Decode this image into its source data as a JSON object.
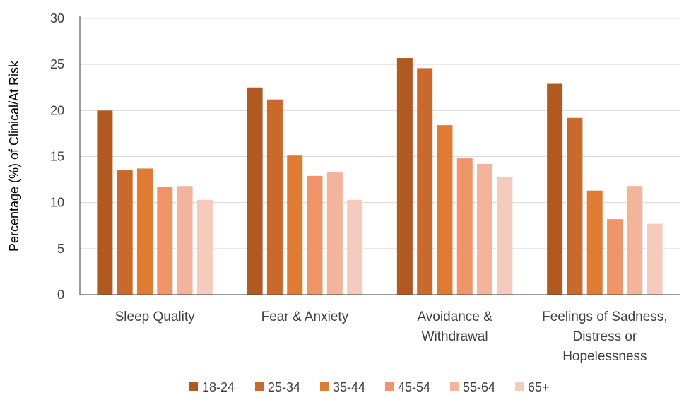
{
  "chart_data": {
    "type": "bar",
    "ylabel": "Percentage (%) of Clinical/At Risk",
    "ylim": [
      0,
      30
    ],
    "yticks": [
      0,
      5,
      10,
      15,
      20,
      25,
      30
    ],
    "grid": "horizontal",
    "legend_position": "bottom",
    "categories": [
      [
        "Sleep Quality"
      ],
      [
        "Fear & Anxiety"
      ],
      [
        "Avoidance &",
        "Withdrawal"
      ],
      [
        "Feelings of Sadness,",
        "Distress or",
        "Hopelessness"
      ]
    ],
    "series": [
      {
        "name": "18-24",
        "color": "#b05a22",
        "values": [
          20.0,
          22.5,
          25.7,
          22.9
        ]
      },
      {
        "name": "25-34",
        "color": "#c96a2c",
        "values": [
          13.5,
          21.2,
          24.6,
          19.2
        ]
      },
      {
        "name": "35-44",
        "color": "#e07b33",
        "values": [
          13.7,
          15.1,
          18.4,
          11.3
        ]
      },
      {
        "name": "45-54",
        "color": "#f0956a",
        "values": [
          11.7,
          12.9,
          14.8,
          8.2
        ]
      },
      {
        "name": "55-64",
        "color": "#f2b49a",
        "values": [
          11.8,
          13.3,
          14.2,
          11.8
        ]
      },
      {
        "name": "65+",
        "color": "#f6cbbd",
        "values": [
          10.3,
          10.3,
          12.8,
          7.7
        ]
      }
    ]
  }
}
